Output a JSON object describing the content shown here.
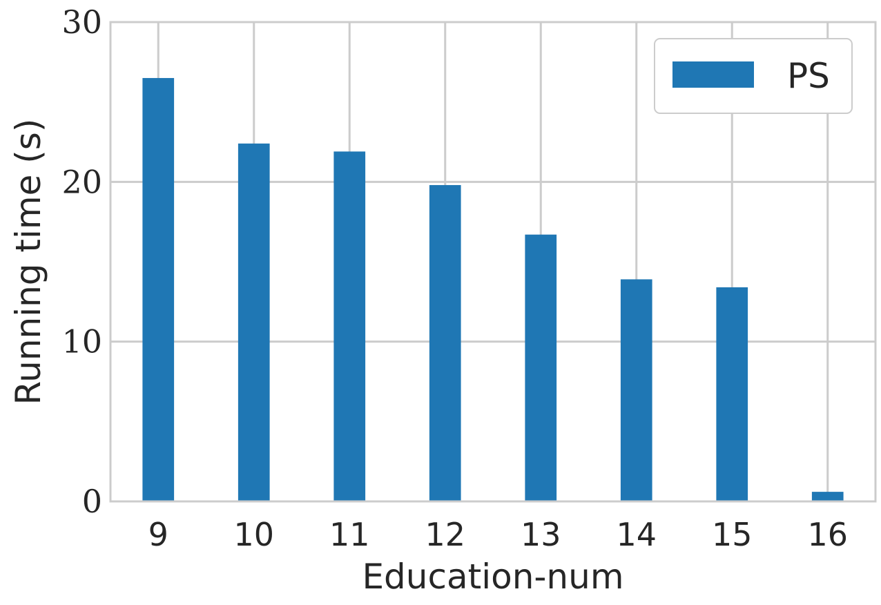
{
  "chart_data": {
    "type": "bar",
    "categories": [
      "9",
      "10",
      "11",
      "12",
      "13",
      "14",
      "15",
      "16"
    ],
    "series": [
      {
        "name": "PS",
        "values": [
          26.5,
          22.4,
          21.9,
          19.8,
          16.7,
          13.9,
          13.4,
          0.6
        ],
        "color": "#1f77b4"
      }
    ],
    "xlabel": "Education-num",
    "ylabel": "Running time (s)",
    "ylim": [
      0,
      30
    ],
    "yticks": [
      "0",
      "10",
      "20",
      "30"
    ],
    "grid": true,
    "legend_position": "top-right"
  }
}
